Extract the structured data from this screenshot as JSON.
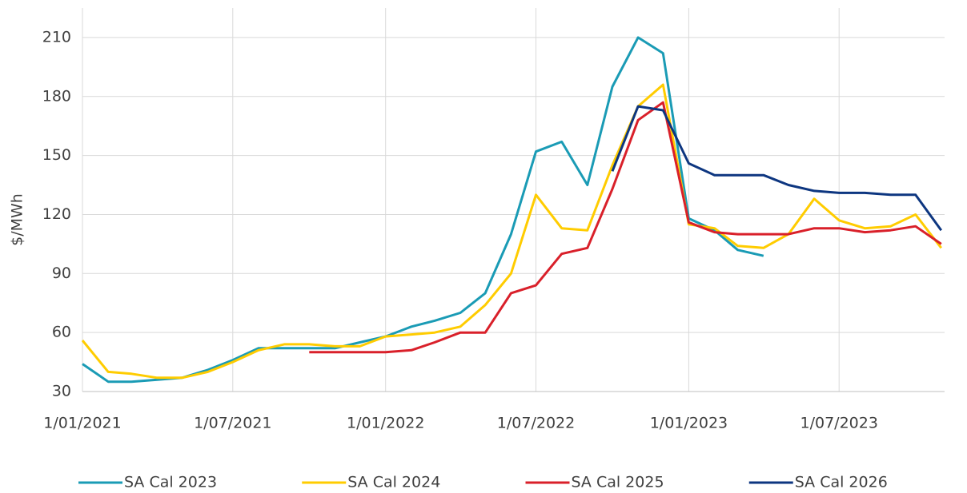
{
  "chart_data": {
    "type": "line",
    "y_label": "$/MWh",
    "x": [
      "2021-01-01",
      "2021-02-01",
      "2021-03-01",
      "2021-04-01",
      "2021-05-01",
      "2021-06-01",
      "2021-07-01",
      "2021-08-01",
      "2021-09-01",
      "2021-10-01",
      "2021-11-01",
      "2021-12-01",
      "2022-01-01",
      "2022-02-01",
      "2022-03-01",
      "2022-04-01",
      "2022-05-01",
      "2022-06-01",
      "2022-07-01",
      "2022-08-01",
      "2022-09-01",
      "2022-10-01",
      "2022-11-01",
      "2022-12-01",
      "2023-01-01",
      "2023-02-01",
      "2023-03-01",
      "2023-04-01",
      "2023-05-01",
      "2023-06-01",
      "2023-07-01",
      "2023-08-01",
      "2023-09-01",
      "2023-10-01",
      "2023-11-01"
    ],
    "series": [
      {
        "name": "SA Cal 2023",
        "color": "#1a9bb5",
        "values": [
          44,
          35,
          35,
          36,
          37,
          41,
          46,
          52,
          52,
          52,
          52,
          55,
          58,
          63,
          66,
          70,
          80,
          110,
          152,
          157,
          135,
          185,
          210,
          202,
          118,
          112,
          102,
          99,
          null,
          null,
          null,
          null,
          null,
          null,
          null
        ]
      },
      {
        "name": "SA Cal 2024",
        "color": "#ffcc00",
        "values": [
          56,
          40,
          39,
          37,
          37,
          40,
          45,
          51,
          54,
          54,
          53,
          53,
          58,
          59,
          60,
          63,
          74,
          90,
          130,
          113,
          112,
          145,
          175,
          186,
          115,
          113,
          104,
          103,
          110,
          128,
          117,
          113,
          114,
          120,
          103
        ]
      },
      {
        "name": "SA Cal 2025",
        "color": "#d9202a",
        "values": [
          null,
          null,
          null,
          null,
          null,
          null,
          null,
          null,
          null,
          50,
          50,
          50,
          50,
          51,
          55,
          60,
          60,
          80,
          84,
          100,
          103,
          133,
          168,
          177,
          116,
          111,
          110,
          110,
          110,
          113,
          113,
          111,
          112,
          114,
          105
        ]
      },
      {
        "name": "SA Cal 2026",
        "color": "#0d3680",
        "values": [
          null,
          null,
          null,
          null,
          null,
          null,
          null,
          null,
          null,
          null,
          null,
          null,
          null,
          null,
          null,
          null,
          null,
          null,
          null,
          null,
          null,
          142,
          175,
          173,
          146,
          140,
          140,
          140,
          135,
          132,
          131,
          131,
          130,
          130,
          112
        ]
      }
    ],
    "xlim": [
      "2021-01-01",
      "2023-11-05"
    ],
    "xticks": [
      {
        "value": "2021-01-01",
        "label": "1/01/2021"
      },
      {
        "value": "2021-07-01",
        "label": "1/07/2021"
      },
      {
        "value": "2022-01-01",
        "label": "1/01/2022"
      },
      {
        "value": "2022-07-01",
        "label": "1/07/2022"
      },
      {
        "value": "2023-01-01",
        "label": "1/01/2023"
      },
      {
        "value": "2023-07-01",
        "label": "1/07/2023"
      }
    ],
    "ylim": [
      30,
      225
    ],
    "yticks": [
      30,
      60,
      90,
      120,
      150,
      180,
      210
    ],
    "grid": true,
    "legend": "bottom"
  }
}
